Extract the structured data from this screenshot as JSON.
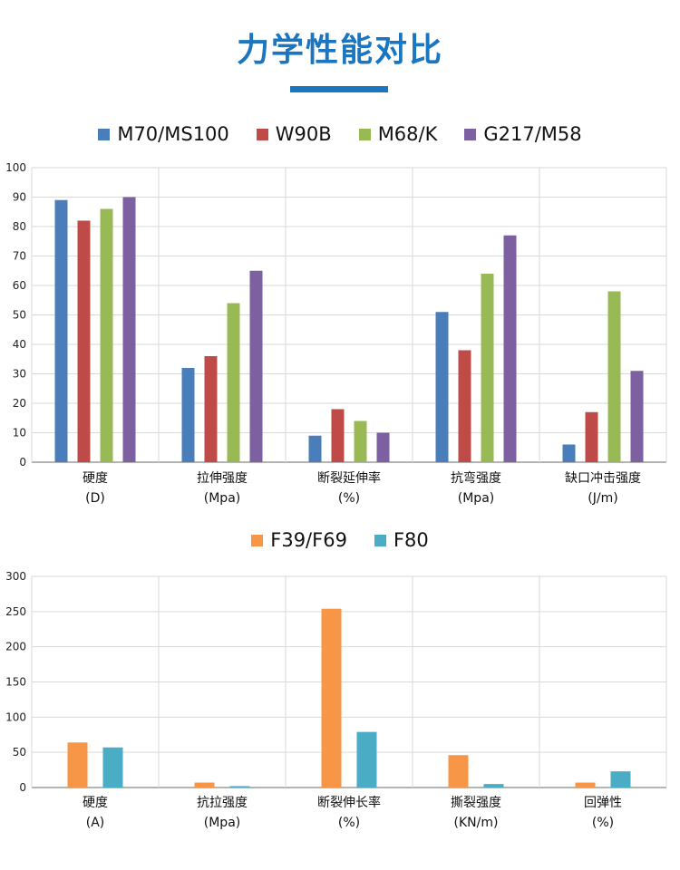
{
  "page": {
    "title": "力学性能对比"
  },
  "charts": [
    {
      "type": "bar",
      "categories": [
        {
          "label": "硬度",
          "unit": "(D)"
        },
        {
          "label": "拉伸强度",
          "unit": "(Mpa)"
        },
        {
          "label": "断裂延伸率",
          "unit": "(%)"
        },
        {
          "label": "抗弯强度",
          "unit": "(Mpa)"
        },
        {
          "label": "缺口冲击强度",
          "unit": "(J/m)"
        }
      ],
      "series": [
        {
          "name": "M70/MS100",
          "color": "#4a7ebb",
          "values": [
            89,
            32,
            9,
            51,
            6
          ]
        },
        {
          "name": "W90B",
          "color": "#be4b48",
          "values": [
            82,
            36,
            18,
            38,
            17
          ]
        },
        {
          "name": "M68/K",
          "color": "#98b954",
          "values": [
            86,
            54,
            14,
            64,
            58
          ]
        },
        {
          "name": "G217/M58",
          "color": "#7d60a0",
          "values": [
            90,
            65,
            10,
            77,
            31
          ]
        }
      ],
      "ylim": [
        0,
        100
      ],
      "yticks": [
        "0",
        "10",
        "20",
        "30",
        "40",
        "50",
        "60",
        "70",
        "80",
        "90",
        "100"
      ],
      "grid": true,
      "legend_position": "top"
    },
    {
      "type": "bar",
      "categories": [
        {
          "label": "硬度",
          "unit": "(A)"
        },
        {
          "label": "抗拉强度",
          "unit": "(Mpa)"
        },
        {
          "label": "断裂伸长率",
          "unit": "(%)"
        },
        {
          "label": "撕裂强度",
          "unit": "(KN/m)"
        },
        {
          "label": "回弹性",
          "unit": "(%)"
        }
      ],
      "series": [
        {
          "name": "F39/F69",
          "color": "#f79646",
          "values": [
            64,
            7,
            254,
            46,
            7
          ]
        },
        {
          "name": "F80",
          "color": "#4bacc6",
          "values": [
            57,
            2,
            79,
            5,
            23
          ]
        }
      ],
      "ylim": [
        0,
        300
      ],
      "yticks": [
        "0",
        "50",
        "100",
        "150",
        "200",
        "250",
        "300"
      ],
      "grid": true,
      "legend_position": "top"
    }
  ]
}
